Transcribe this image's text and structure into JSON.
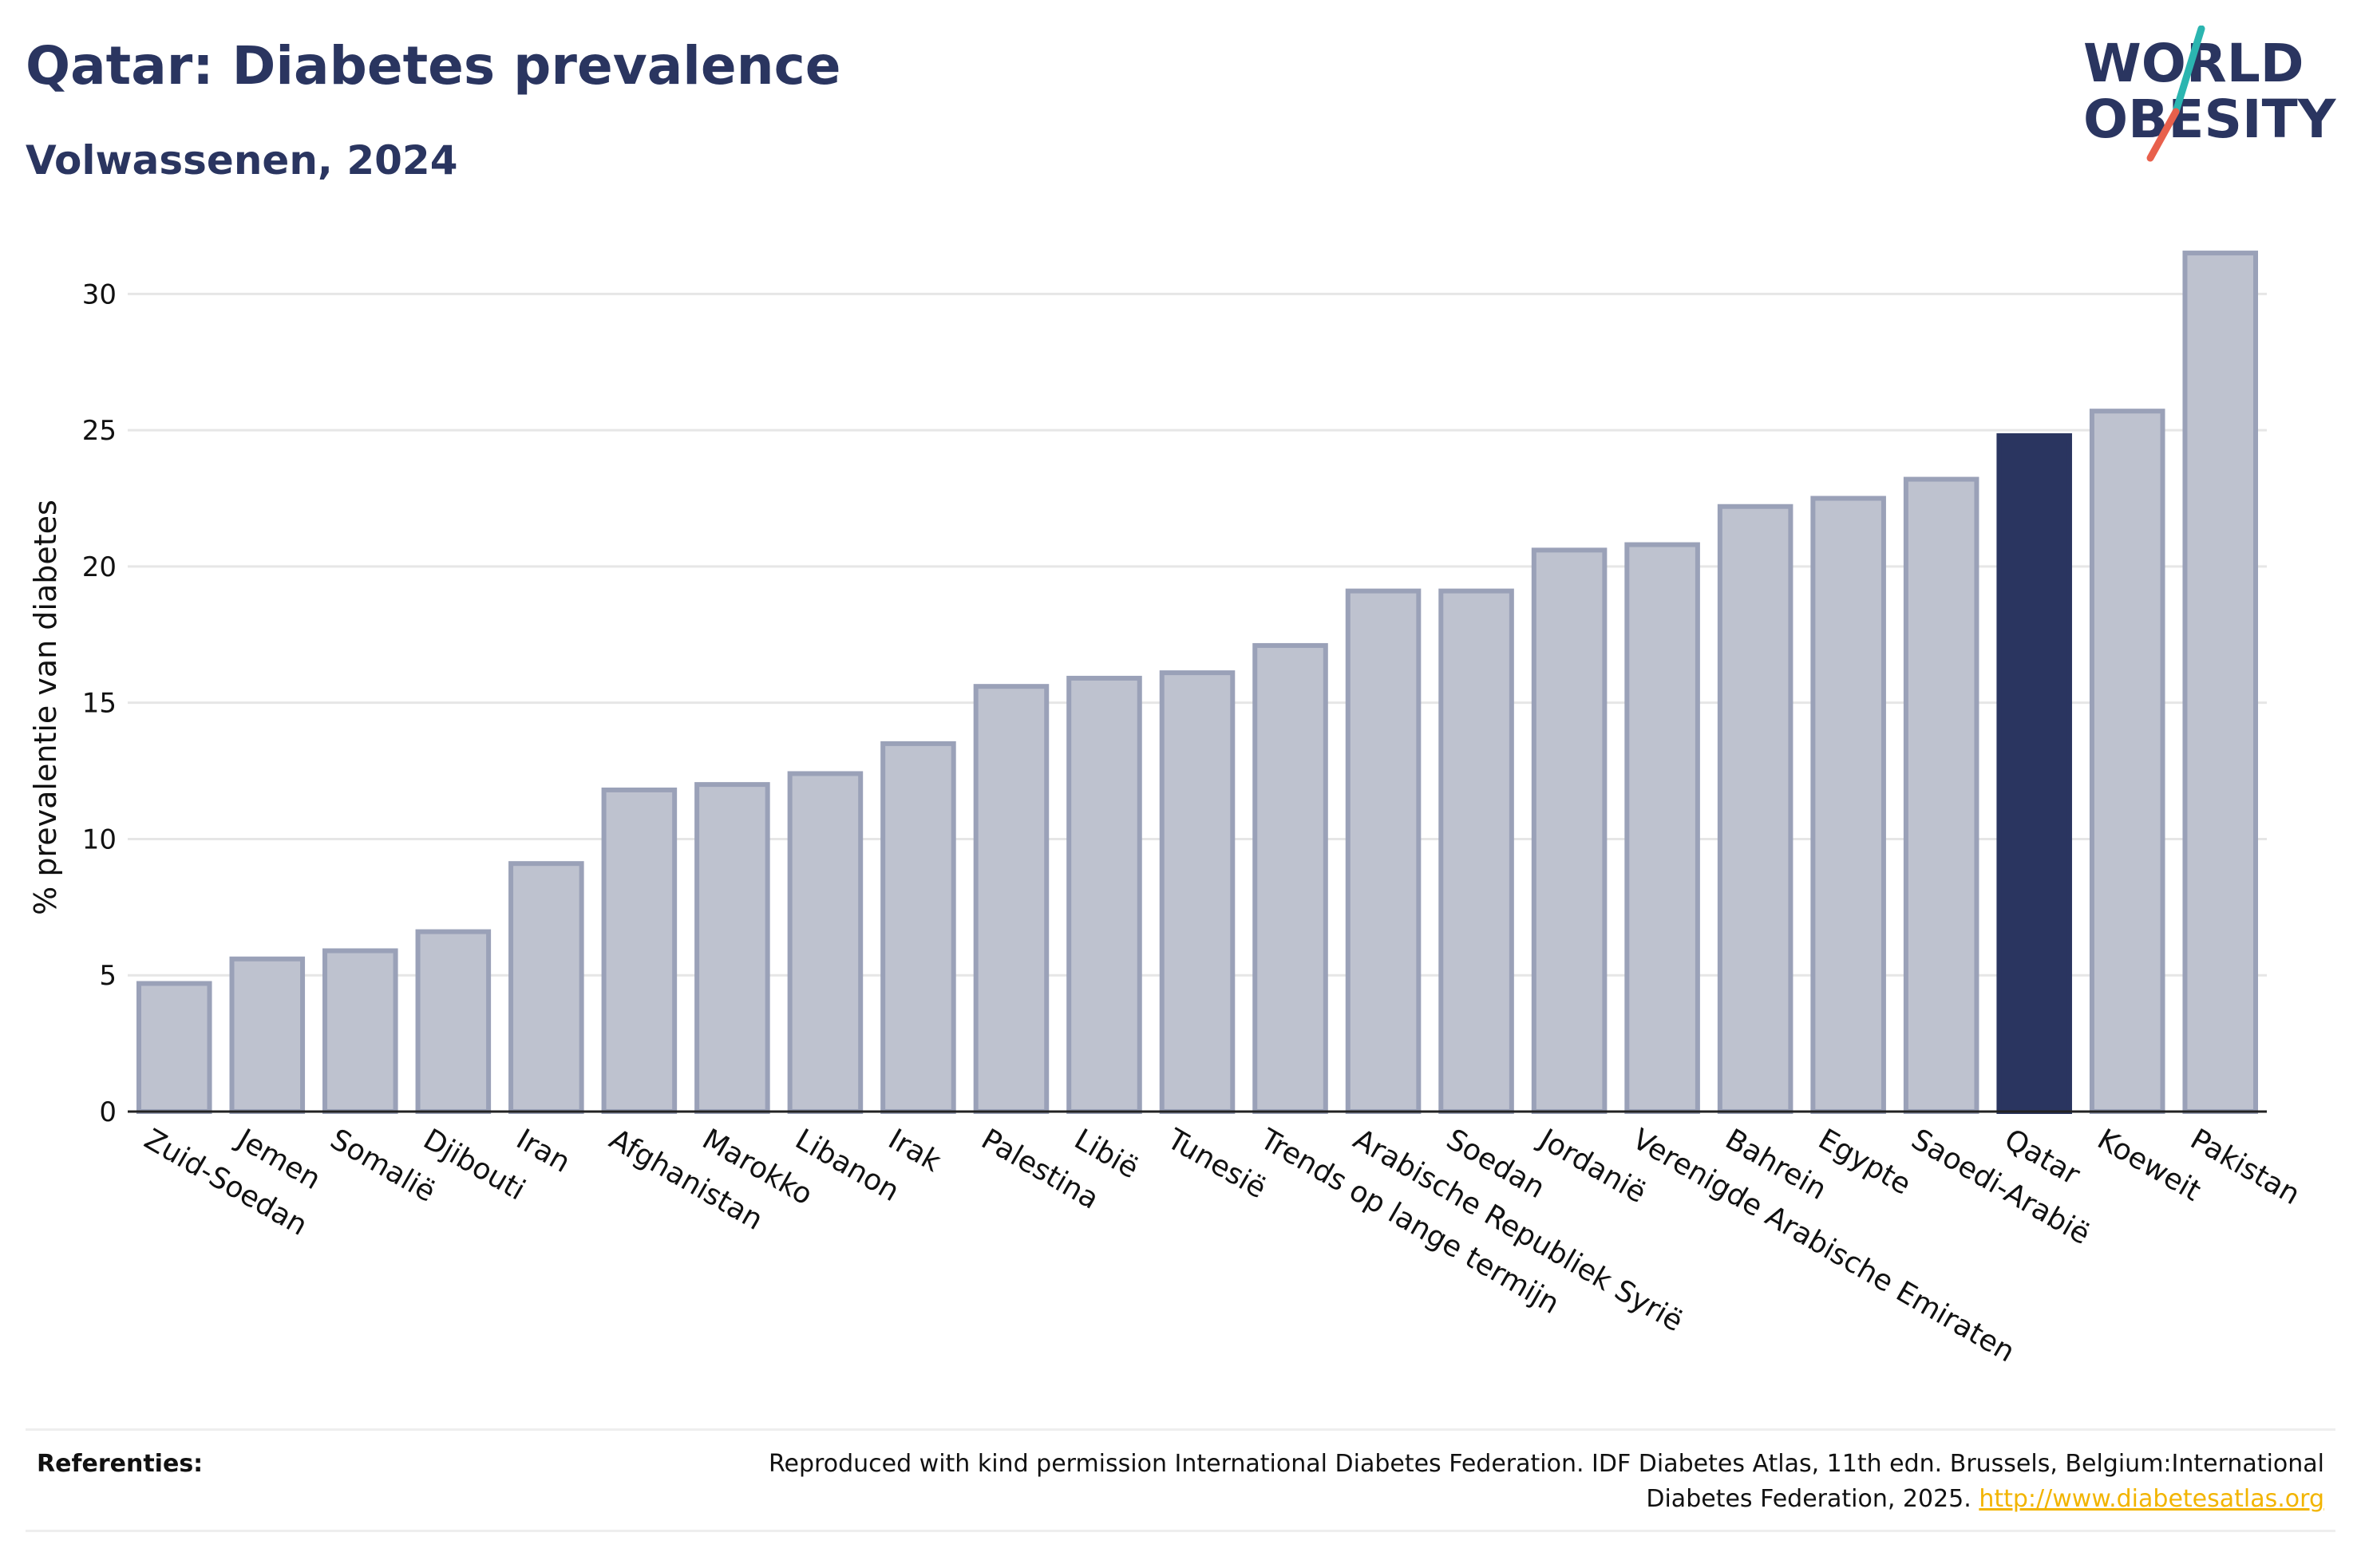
{
  "header": {
    "title": "Qatar: Diabetes prevalence",
    "subtitle": "Volwassenen, 2024"
  },
  "logo": {
    "line1": "WORLD",
    "line2": "OBESITY",
    "colors": {
      "text": "#2a3560",
      "slash_top": "#2bb5b0",
      "slash_bottom": "#e8604c"
    }
  },
  "colors": {
    "bar_default": "#bec2cf",
    "bar_border": "#9aa1b8",
    "bar_highlight": "#2a3560",
    "grid": "#e6e6e6",
    "axis": "#222222"
  },
  "chart_data": {
    "type": "bar",
    "ylabel": "% prevalentie van diabetes",
    "xlabel": "",
    "ylim": [
      0,
      32
    ],
    "yticks": [
      0,
      5,
      10,
      15,
      20,
      25,
      30
    ],
    "grid": true,
    "highlight": "Qatar",
    "categories": [
      "Zuid-Soedan",
      "Jemen",
      "Somalië",
      "Djibouti",
      "Iran",
      "Afghanistan",
      "Marokko",
      "Libanon",
      "Irak",
      "Palestina",
      "Libië",
      "Tunesië",
      "Trends op lange termijn",
      "Arabische Republiek Syrië",
      "Soedan",
      "Jordanië",
      "Verenigde Arabische Emiraten",
      "Bahrein",
      "Egypte",
      "Saoedi-Arabië",
      "Qatar",
      "Koeweit",
      "Pakistan"
    ],
    "values": [
      4.7,
      5.6,
      5.9,
      6.6,
      9.1,
      11.8,
      12.0,
      12.4,
      13.5,
      15.6,
      15.9,
      16.1,
      17.1,
      19.1,
      19.1,
      20.6,
      20.8,
      22.2,
      22.5,
      23.2,
      24.8,
      25.7,
      31.5
    ]
  },
  "footer": {
    "label": "Referenties:",
    "text": "Reproduced with kind permission International Diabetes Federation. IDF Diabetes Atlas, 11th edn. Brussels, Belgium:International Diabetes Federation, 2025.",
    "link": "http://www.diabetesatlas.org"
  }
}
